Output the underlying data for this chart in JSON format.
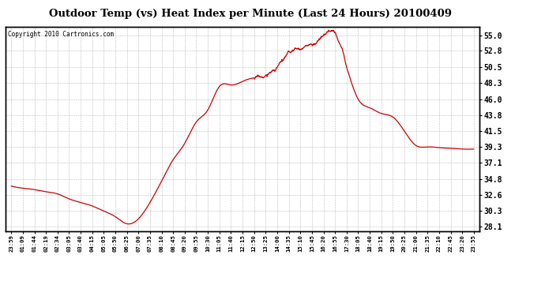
{
  "title": "Outdoor Temp (vs) Heat Index per Minute (Last 24 Hours) 20100409",
  "copyright": "Copyright 2010 Cartronics.com",
  "bg_color": "#ffffff",
  "line_color": "#cc0000",
  "grid_color": "#bbbbbb",
  "yticks": [
    28.1,
    30.3,
    32.6,
    34.8,
    37.1,
    39.3,
    41.5,
    43.8,
    46.0,
    48.3,
    50.5,
    52.8,
    55.0
  ],
  "ymin": 27.5,
  "ymax": 56.2,
  "xtick_labels": [
    "23:59",
    "01:09",
    "01:44",
    "02:19",
    "02:34",
    "03:05",
    "03:40",
    "04:15",
    "05:05",
    "05:50",
    "06:25",
    "07:00",
    "07:35",
    "08:10",
    "08:45",
    "09:20",
    "09:55",
    "10:30",
    "11:05",
    "11:40",
    "12:15",
    "12:50",
    "13:25",
    "14:00",
    "14:35",
    "15:10",
    "15:45",
    "16:20",
    "16:55",
    "17:30",
    "18:05",
    "18:40",
    "19:15",
    "19:50",
    "20:25",
    "21:00",
    "21:35",
    "22:10",
    "22:45",
    "23:20",
    "23:55"
  ],
  "curve_y_points": [
    33.8,
    33.5,
    33.3,
    33.0,
    32.7,
    32.0,
    31.5,
    31.0,
    30.3,
    29.5,
    28.5,
    29.2,
    31.5,
    34.5,
    37.5,
    39.8,
    42.8,
    44.5,
    47.8,
    48.0,
    48.5,
    49.0,
    49.2,
    50.5,
    51.8,
    52.5,
    53.0,
    54.3,
    54.5,
    50.5,
    46.0,
    44.8,
    44.0,
    43.5,
    41.5,
    39.5,
    39.3,
    39.2,
    39.1,
    39.0,
    39.0
  ],
  "noise_regions": [
    {
      "start": 21,
      "end": 29,
      "scale": 0.5
    }
  ]
}
